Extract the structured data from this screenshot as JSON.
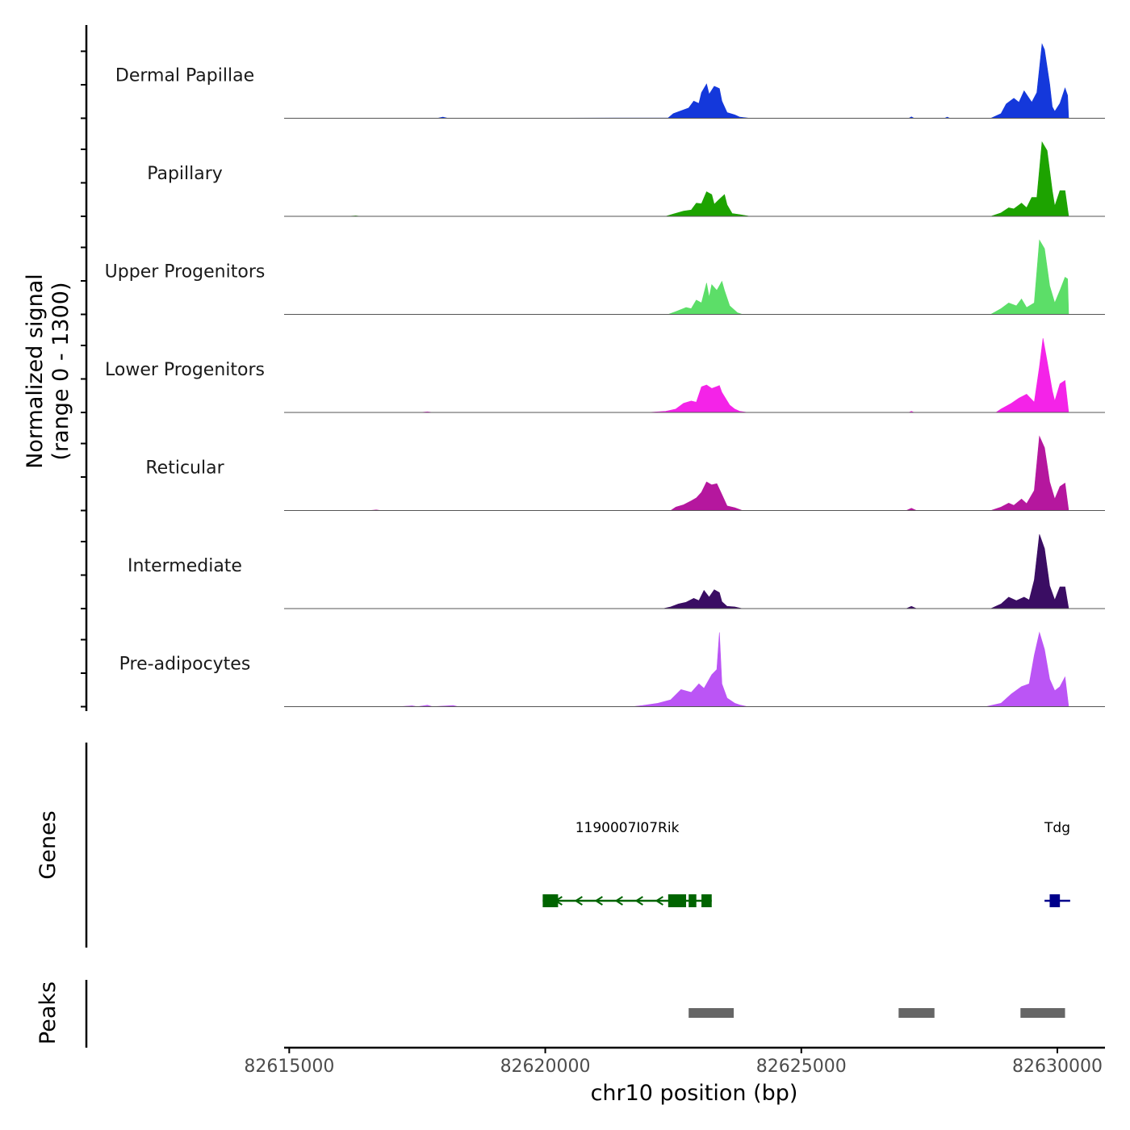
{
  "chart_data": {
    "type": "area",
    "title": "",
    "ylabel_line1": "Normalized signal",
    "ylabel_line2": "(range 0 - 1300)",
    "ylim": [
      0,
      1300
    ],
    "xlabel": "chr10 position (bp)",
    "xlim": [
      82614900,
      82630930
    ],
    "xticks": [
      82615000,
      82620000,
      82625000,
      82630000
    ],
    "xtick_labels": [
      "82615000",
      "82620000",
      "82625000",
      "82630000"
    ],
    "genes_label": "Genes",
    "peaks_label": "Peaks",
    "series": [
      {
        "name": "Dermal Papillae",
        "color": "#1438DB",
        "points": [
          [
            82614900,
            0
          ],
          [
            82617900,
            2
          ],
          [
            82618000,
            20
          ],
          [
            82618100,
            0
          ],
          [
            82622400,
            5
          ],
          [
            82622500,
            80
          ],
          [
            82622650,
            130
          ],
          [
            82622800,
            180
          ],
          [
            82622900,
            300
          ],
          [
            82623000,
            260
          ],
          [
            82623050,
            450
          ],
          [
            82623150,
            600
          ],
          [
            82623200,
            420
          ],
          [
            82623300,
            560
          ],
          [
            82623400,
            520
          ],
          [
            82623450,
            300
          ],
          [
            82623550,
            100
          ],
          [
            82623700,
            60
          ],
          [
            82623800,
            20
          ],
          [
            82624000,
            0
          ],
          [
            82627100,
            0
          ],
          [
            82627150,
            25
          ],
          [
            82627200,
            0
          ],
          [
            82627800,
            0
          ],
          [
            82627850,
            20
          ],
          [
            82627900,
            0
          ],
          [
            82628700,
            0
          ],
          [
            82628900,
            80
          ],
          [
            82629000,
            250
          ],
          [
            82629150,
            350
          ],
          [
            82629250,
            280
          ],
          [
            82629350,
            480
          ],
          [
            82629500,
            280
          ],
          [
            82629600,
            450
          ],
          [
            82629700,
            1300
          ],
          [
            82629750,
            1200
          ],
          [
            82629850,
            600
          ],
          [
            82629900,
            200
          ],
          [
            82629950,
            120
          ],
          [
            82630050,
            260
          ],
          [
            82630150,
            530
          ],
          [
            82630200,
            400
          ],
          [
            82630220,
            0
          ]
        ]
      },
      {
        "name": "Papillary",
        "color": "#1DA300",
        "points": [
          [
            82614900,
            0
          ],
          [
            82616200,
            3
          ],
          [
            82616300,
            8
          ],
          [
            82616400,
            0
          ],
          [
            82622350,
            0
          ],
          [
            82622500,
            40
          ],
          [
            82622700,
            90
          ],
          [
            82622850,
            110
          ],
          [
            82622950,
            230
          ],
          [
            82623050,
            220
          ],
          [
            82623150,
            430
          ],
          [
            82623250,
            380
          ],
          [
            82623300,
            210
          ],
          [
            82623400,
            300
          ],
          [
            82623500,
            380
          ],
          [
            82623550,
            200
          ],
          [
            82623650,
            50
          ],
          [
            82623800,
            30
          ],
          [
            82624000,
            0
          ],
          [
            82628700,
            0
          ],
          [
            82628900,
            60
          ],
          [
            82629050,
            150
          ],
          [
            82629150,
            130
          ],
          [
            82629300,
            230
          ],
          [
            82629400,
            150
          ],
          [
            82629500,
            330
          ],
          [
            82629600,
            330
          ],
          [
            82629700,
            1300
          ],
          [
            82629800,
            1150
          ],
          [
            82629900,
            450
          ],
          [
            82629950,
            180
          ],
          [
            82630050,
            450
          ],
          [
            82630150,
            450
          ],
          [
            82630220,
            0
          ]
        ]
      },
      {
        "name": "Upper Progenitors",
        "color": "#5CDE68",
        "points": [
          [
            82614900,
            0
          ],
          [
            82622400,
            0
          ],
          [
            82622550,
            50
          ],
          [
            82622750,
            120
          ],
          [
            82622850,
            100
          ],
          [
            82622950,
            250
          ],
          [
            82623050,
            200
          ],
          [
            82623150,
            550
          ],
          [
            82623200,
            300
          ],
          [
            82623250,
            520
          ],
          [
            82623350,
            420
          ],
          [
            82623450,
            580
          ],
          [
            82623500,
            420
          ],
          [
            82623600,
            150
          ],
          [
            82623750,
            30
          ],
          [
            82623850,
            0
          ],
          [
            82628700,
            0
          ],
          [
            82628900,
            100
          ],
          [
            82629050,
            200
          ],
          [
            82629200,
            150
          ],
          [
            82629300,
            270
          ],
          [
            82629400,
            120
          ],
          [
            82629550,
            200
          ],
          [
            82629650,
            1300
          ],
          [
            82629750,
            1150
          ],
          [
            82629850,
            500
          ],
          [
            82629950,
            200
          ],
          [
            82630050,
            420
          ],
          [
            82630150,
            650
          ],
          [
            82630200,
            620
          ],
          [
            82630220,
            0
          ]
        ]
      },
      {
        "name": "Lower Progenitors",
        "color": "#F423E8",
        "points": [
          [
            82614900,
            0
          ],
          [
            82617600,
            3
          ],
          [
            82617700,
            12
          ],
          [
            82617800,
            0
          ],
          [
            82622000,
            0
          ],
          [
            82622350,
            20
          ],
          [
            82622550,
            60
          ],
          [
            82622700,
            160
          ],
          [
            82622850,
            200
          ],
          [
            82622950,
            180
          ],
          [
            82623050,
            450
          ],
          [
            82623150,
            480
          ],
          [
            82623250,
            420
          ],
          [
            82623400,
            470
          ],
          [
            82623450,
            350
          ],
          [
            82623600,
            130
          ],
          [
            82623700,
            60
          ],
          [
            82623800,
            20
          ],
          [
            82623950,
            0
          ],
          [
            82627100,
            0
          ],
          [
            82627150,
            20
          ],
          [
            82627200,
            0
          ],
          [
            82628800,
            0
          ],
          [
            82628900,
            60
          ],
          [
            82629100,
            160
          ],
          [
            82629250,
            250
          ],
          [
            82629400,
            320
          ],
          [
            82629550,
            180
          ],
          [
            82629650,
            800
          ],
          [
            82629720,
            1300
          ],
          [
            82629800,
            900
          ],
          [
            82629900,
            380
          ],
          [
            82629950,
            200
          ],
          [
            82630050,
            500
          ],
          [
            82630150,
            560
          ],
          [
            82630220,
            0
          ]
        ]
      },
      {
        "name": "Reticular",
        "color": "#B5179E",
        "points": [
          [
            82614900,
            0
          ],
          [
            82616600,
            3
          ],
          [
            82616700,
            10
          ],
          [
            82616800,
            0
          ],
          [
            82622450,
            0
          ],
          [
            82622550,
            60
          ],
          [
            82622700,
            100
          ],
          [
            82622850,
            170
          ],
          [
            82622950,
            220
          ],
          [
            82623050,
            320
          ],
          [
            82623150,
            500
          ],
          [
            82623250,
            450
          ],
          [
            82623350,
            470
          ],
          [
            82623450,
            280
          ],
          [
            82623550,
            80
          ],
          [
            82623700,
            50
          ],
          [
            82623850,
            0
          ],
          [
            82627050,
            0
          ],
          [
            82627150,
            40
          ],
          [
            82627250,
            0
          ],
          [
            82628700,
            0
          ],
          [
            82628900,
            60
          ],
          [
            82629050,
            130
          ],
          [
            82629150,
            90
          ],
          [
            82629300,
            200
          ],
          [
            82629400,
            120
          ],
          [
            82629550,
            350
          ],
          [
            82629650,
            1300
          ],
          [
            82629750,
            1100
          ],
          [
            82629850,
            500
          ],
          [
            82629950,
            200
          ],
          [
            82630050,
            420
          ],
          [
            82630150,
            480
          ],
          [
            82630220,
            0
          ]
        ]
      },
      {
        "name": "Intermediate",
        "color": "#3A0D63",
        "points": [
          [
            82614900,
            0
          ],
          [
            82622300,
            0
          ],
          [
            82622450,
            30
          ],
          [
            82622600,
            80
          ],
          [
            82622750,
            110
          ],
          [
            82622900,
            180
          ],
          [
            82623000,
            140
          ],
          [
            82623100,
            320
          ],
          [
            82623200,
            200
          ],
          [
            82623300,
            330
          ],
          [
            82623400,
            280
          ],
          [
            82623450,
            120
          ],
          [
            82623550,
            40
          ],
          [
            82623700,
            30
          ],
          [
            82623850,
            0
          ],
          [
            82627050,
            0
          ],
          [
            82627150,
            40
          ],
          [
            82627250,
            0
          ],
          [
            82628700,
            0
          ],
          [
            82628900,
            80
          ],
          [
            82629050,
            200
          ],
          [
            82629200,
            140
          ],
          [
            82629350,
            200
          ],
          [
            82629450,
            150
          ],
          [
            82629550,
            500
          ],
          [
            82629650,
            1300
          ],
          [
            82629750,
            1050
          ],
          [
            82629850,
            400
          ],
          [
            82629950,
            150
          ],
          [
            82630050,
            380
          ],
          [
            82630150,
            380
          ],
          [
            82630220,
            0
          ]
        ]
      },
      {
        "name": "Pre-adipocytes",
        "color": "#BB55F5",
        "points": [
          [
            82614900,
            0
          ],
          [
            82617200,
            3
          ],
          [
            82617400,
            15
          ],
          [
            82617500,
            0
          ],
          [
            82617700,
            25
          ],
          [
            82617800,
            0
          ],
          [
            82618200,
            20
          ],
          [
            82618300,
            0
          ],
          [
            82621700,
            0
          ],
          [
            82621900,
            20
          ],
          [
            82622200,
            60
          ],
          [
            82622450,
            120
          ],
          [
            82622650,
            300
          ],
          [
            82622850,
            250
          ],
          [
            82623000,
            400
          ],
          [
            82623100,
            320
          ],
          [
            82623250,
            560
          ],
          [
            82623350,
            650
          ],
          [
            82623400,
            1300
          ],
          [
            82623450,
            400
          ],
          [
            82623550,
            150
          ],
          [
            82623700,
            60
          ],
          [
            82623800,
            30
          ],
          [
            82623950,
            0
          ],
          [
            82628600,
            0
          ],
          [
            82628900,
            60
          ],
          [
            82629100,
            220
          ],
          [
            82629300,
            350
          ],
          [
            82629450,
            400
          ],
          [
            82629550,
            900
          ],
          [
            82629650,
            1300
          ],
          [
            82629750,
            1000
          ],
          [
            82629850,
            480
          ],
          [
            82629950,
            280
          ],
          [
            82630050,
            350
          ],
          [
            82630150,
            520
          ],
          [
            82630220,
            0
          ]
        ]
      }
    ],
    "genes": [
      {
        "name": "1190007I07Rik",
        "strand": "-",
        "color": "#006400",
        "start": 82619950,
        "end": 82623250,
        "exons": [
          [
            82619950,
            82620250
          ],
          [
            82622400,
            82622750
          ],
          [
            82622800,
            82622950
          ],
          [
            82623050,
            82623250
          ]
        ]
      },
      {
        "name": "Tdg",
        "strand": "+",
        "color": "#00008B",
        "start": 82629750,
        "end": 82630250,
        "exons": [
          [
            82629850,
            82630050
          ]
        ]
      }
    ],
    "peaks": [
      {
        "start": 82622800,
        "end": 82623680
      },
      {
        "start": 82626900,
        "end": 82627600
      },
      {
        "start": 82629280,
        "end": 82630150
      }
    ],
    "peak_color": "#666666"
  }
}
